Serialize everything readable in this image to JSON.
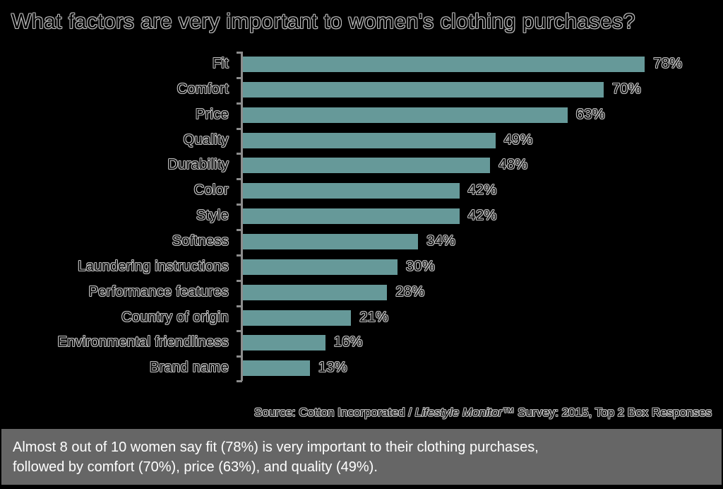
{
  "title": "What factors are very important to women's clothing purchases?",
  "source": {
    "prefix": "Source: Cotton Incorporated / ",
    "italic": "Lifestyle Monitor",
    "suffix": "™ Survey: 2015, Top 2 Box Responses"
  },
  "summary": {
    "line1": "Almost 8 out of 10 women say fit (78%) is very important to their clothing purchases,",
    "line2": "followed by comfort (70%), price (63%), and quality (49%)."
  },
  "colors": {
    "bar": "#669999",
    "background": "#000000",
    "axis": "#8c8c8c",
    "summary_bg": "#666666"
  },
  "chart_data": {
    "type": "bar",
    "orientation": "horizontal",
    "title": "What factors are very important to women's clothing purchases?",
    "xlabel": "",
    "ylabel": "",
    "categories": [
      "Fit",
      "Comfort",
      "Price",
      "Quality",
      "Durability",
      "Color",
      "Style",
      "Softness",
      "Laundering instructions",
      "Performance features",
      "Country of origin",
      "Environmental friendliness",
      "Brand name"
    ],
    "values": [
      78,
      70,
      63,
      49,
      48,
      42,
      42,
      34,
      30,
      28,
      21,
      16,
      13
    ],
    "value_labels": [
      "78%",
      "70%",
      "63%",
      "49%",
      "48%",
      "42%",
      "42%",
      "34%",
      "30%",
      "28%",
      "21%",
      "16%",
      "13%"
    ],
    "unit": "%",
    "grid": false,
    "legend": "none",
    "xlim": [
      0,
      100
    ],
    "annotation": "Source: Cotton Incorporated / Lifestyle Monitor™ Survey: 2015, Top 2 Box Responses"
  }
}
